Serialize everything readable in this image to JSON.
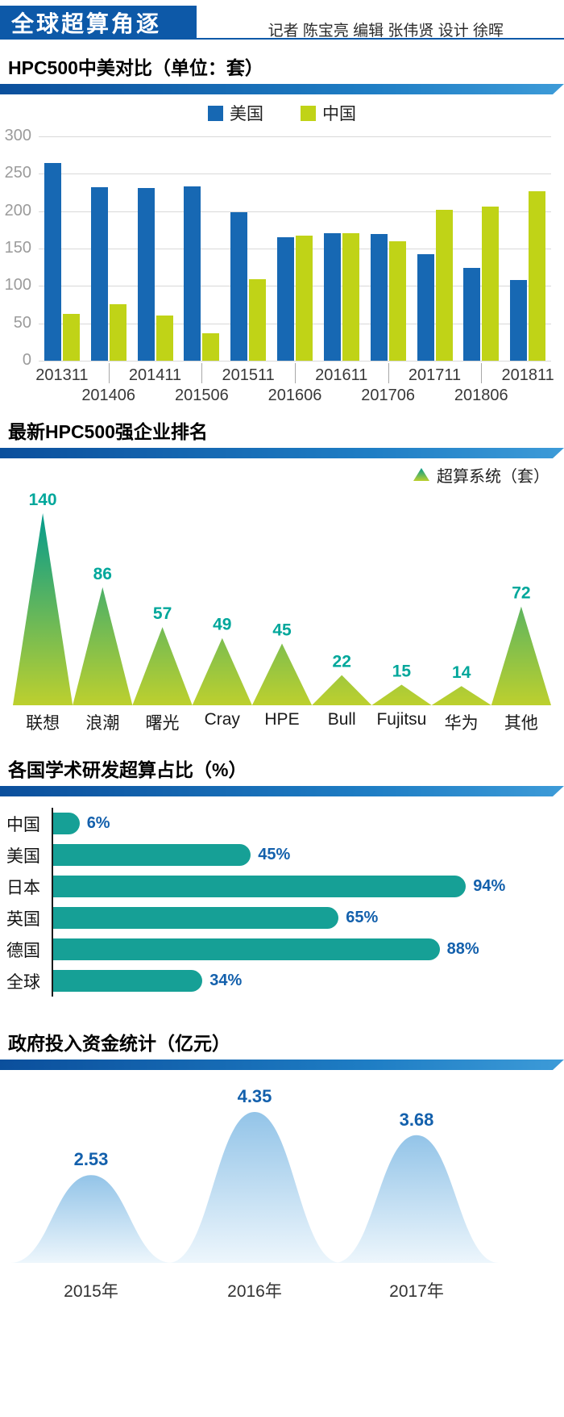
{
  "header": {
    "title": "全球超算角逐",
    "credits": "记者 陈宝亮 编辑 张伟贤 设计 徐晖"
  },
  "colors": {
    "header_blue": "#0d59a8",
    "us_blue": "#1768b3",
    "cn_green": "#c0d317",
    "teal_bar": "#16a096",
    "teal_label": "#00a79b",
    "value_blue": "#1360ac",
    "mountain_top": "#009a8e",
    "mountain_bottom": "#bdd02e",
    "bell_top": "#93c4e8",
    "bell_bottom": "#edf6fc"
  },
  "chart_data": [
    {
      "type": "bar",
      "title": "HPC500中美对比（单位：套）",
      "categories": [
        "201311",
        "201406",
        "201411",
        "201506",
        "201511",
        "201606",
        "201611",
        "201706",
        "201711",
        "201806",
        "201811"
      ],
      "series": [
        {
          "name": "美国",
          "color": "#1768b3",
          "values": [
            264,
            232,
            231,
            233,
            199,
            165,
            171,
            169,
            143,
            124,
            108
          ]
        },
        {
          "name": "中国",
          "color": "#c0d317",
          "values": [
            63,
            76,
            61,
            37,
            109,
            167,
            171,
            160,
            202,
            206,
            227
          ]
        }
      ],
      "ylim": [
        0,
        300
      ],
      "yticks": [
        300,
        250,
        200,
        150,
        100,
        50,
        0
      ],
      "grid": true,
      "legend_position": "top"
    },
    {
      "type": "area-triangle",
      "title": "最新HPC500强企业排名",
      "legend_label": "超算系统（套）",
      "categories": [
        "联想",
        "浪潮",
        "曙光",
        "Cray",
        "HPE",
        "Bull",
        "Fujitsu",
        "华为",
        "其他"
      ],
      "values": [
        140,
        86,
        57,
        49,
        45,
        22,
        15,
        14,
        72
      ]
    },
    {
      "type": "bar-horizontal",
      "title": "各国学术研发超算占比（%）",
      "categories": [
        "中国",
        "美国",
        "日本",
        "英国",
        "德国",
        "全球"
      ],
      "values": [
        6,
        45,
        94,
        65,
        88,
        34
      ],
      "value_labels": [
        "6%",
        "45%",
        "94%",
        "65%",
        "88%",
        "34%"
      ],
      "xlim": [
        0,
        100
      ]
    },
    {
      "type": "area",
      "title": "政府投入资金统计（亿元）",
      "categories": [
        "2015年",
        "2016年",
        "2017年"
      ],
      "values": [
        2.53,
        4.35,
        3.68
      ],
      "value_labels": [
        "2.53",
        "4.35",
        "3.68"
      ]
    }
  ]
}
